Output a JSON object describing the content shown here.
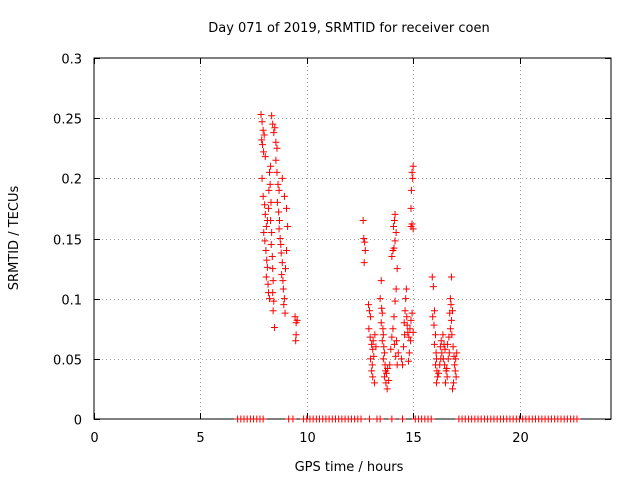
{
  "chart_data": {
    "type": "scatter",
    "title": "Day 071 of 2019, SRMTID for receiver coen",
    "xlabel": "GPS time / hours",
    "ylabel": "SRMTID / TECUs",
    "xlim": [
      0,
      24.3
    ],
    "ylim": [
      0,
      0.3
    ],
    "xticks": [
      0,
      5,
      10,
      15,
      20
    ],
    "xtick_labels": [
      "0",
      "5",
      "10",
      "15",
      "20"
    ],
    "yticks": [
      0,
      0.05,
      0.1,
      0.15,
      0.2,
      0.25,
      0.3
    ],
    "ytick_labels": [
      "0",
      "0.05",
      "0.1",
      "0.15",
      "0.2",
      "0.25",
      "0.3"
    ],
    "grid": true,
    "marker": "plus",
    "color": "#ff0000",
    "series": [
      {
        "name": "SRMTID",
        "points": [
          [
            7.85,
            0.253
          ],
          [
            7.9,
            0.247
          ],
          [
            7.95,
            0.24
          ],
          [
            7.88,
            0.232
          ],
          [
            7.92,
            0.228
          ],
          [
            8.0,
            0.236
          ],
          [
            7.97,
            0.222
          ],
          [
            8.05,
            0.218
          ],
          [
            7.9,
            0.2
          ],
          [
            7.95,
            0.185
          ],
          [
            8.02,
            0.178
          ],
          [
            8.05,
            0.17
          ],
          [
            8.1,
            0.16
          ],
          [
            7.98,
            0.155
          ],
          [
            8.03,
            0.148
          ],
          [
            8.08,
            0.14
          ],
          [
            8.12,
            0.132
          ],
          [
            8.15,
            0.126
          ],
          [
            8.1,
            0.118
          ],
          [
            8.18,
            0.112
          ],
          [
            8.2,
            0.105
          ],
          [
            8.25,
            0.1
          ],
          [
            8.15,
            0.165
          ],
          [
            8.2,
            0.175
          ],
          [
            8.22,
            0.19
          ],
          [
            8.25,
            0.205
          ],
          [
            8.3,
            0.21
          ],
          [
            8.28,
            0.195
          ],
          [
            8.32,
            0.18
          ],
          [
            8.3,
            0.165
          ],
          [
            8.35,
            0.155
          ],
          [
            8.33,
            0.145
          ],
          [
            8.38,
            0.135
          ],
          [
            8.4,
            0.125
          ],
          [
            8.42,
            0.115
          ],
          [
            8.4,
            0.105
          ],
          [
            8.45,
            0.098
          ],
          [
            8.42,
            0.09
          ],
          [
            8.48,
            0.076
          ],
          [
            8.35,
            0.252
          ],
          [
            8.4,
            0.245
          ],
          [
            8.45,
            0.238
          ],
          [
            8.5,
            0.242
          ],
          [
            8.55,
            0.23
          ],
          [
            8.6,
            0.225
          ],
          [
            8.55,
            0.215
          ],
          [
            8.6,
            0.205
          ],
          [
            8.65,
            0.195
          ],
          [
            8.7,
            0.19
          ],
          [
            8.62,
            0.18
          ],
          [
            8.68,
            0.172
          ],
          [
            8.72,
            0.165
          ],
          [
            8.7,
            0.158
          ],
          [
            8.75,
            0.15
          ],
          [
            8.78,
            0.145
          ],
          [
            8.8,
            0.138
          ],
          [
            8.85,
            0.13
          ],
          [
            8.82,
            0.12
          ],
          [
            8.88,
            0.115
          ],
          [
            8.9,
            0.108
          ],
          [
            8.95,
            0.1
          ],
          [
            8.92,
            0.095
          ],
          [
            8.98,
            0.088
          ],
          [
            9.0,
            0.125
          ],
          [
            9.05,
            0.14
          ],
          [
            9.1,
            0.16
          ],
          [
            9.05,
            0.175
          ],
          [
            8.95,
            0.185
          ],
          [
            8.85,
            0.2
          ],
          [
            9.45,
            0.085
          ],
          [
            9.5,
            0.08
          ],
          [
            9.55,
            0.082
          ],
          [
            9.5,
            0.07
          ],
          [
            9.48,
            0.065
          ],
          [
            12.65,
            0.165
          ],
          [
            12.68,
            0.15
          ],
          [
            12.72,
            0.147
          ],
          [
            12.75,
            0.14
          ],
          [
            12.7,
            0.13
          ],
          [
            12.9,
            0.095
          ],
          [
            12.95,
            0.09
          ],
          [
            13.0,
            0.085
          ],
          [
            12.92,
            0.075
          ],
          [
            12.98,
            0.068
          ],
          [
            13.05,
            0.062
          ],
          [
            13.1,
            0.058
          ],
          [
            13.0,
            0.05
          ],
          [
            13.08,
            0.045
          ],
          [
            13.15,
            0.052
          ],
          [
            13.12,
            0.065
          ],
          [
            13.2,
            0.07
          ],
          [
            13.25,
            0.06
          ],
          [
            13.05,
            0.04
          ],
          [
            13.1,
            0.035
          ],
          [
            13.18,
            0.03
          ],
          [
            13.5,
            0.115
          ],
          [
            13.45,
            0.1
          ],
          [
            13.52,
            0.092
          ],
          [
            13.55,
            0.088
          ],
          [
            13.5,
            0.08
          ],
          [
            13.58,
            0.075
          ],
          [
            13.6,
            0.07
          ],
          [
            13.55,
            0.065
          ],
          [
            13.62,
            0.06
          ],
          [
            13.65,
            0.055
          ],
          [
            13.6,
            0.05
          ],
          [
            13.68,
            0.045
          ],
          [
            13.7,
            0.04
          ],
          [
            13.65,
            0.035
          ],
          [
            13.72,
            0.03
          ],
          [
            13.75,
            0.038
          ],
          [
            13.8,
            0.042
          ],
          [
            13.78,
            0.025
          ],
          [
            13.85,
            0.032
          ],
          [
            13.9,
            0.045
          ],
          [
            13.95,
            0.058
          ],
          [
            14.0,
            0.068
          ],
          [
            14.05,
            0.075
          ],
          [
            14.1,
            0.085
          ],
          [
            14.15,
            0.098
          ],
          [
            14.2,
            0.108
          ],
          [
            14.12,
            0.062
          ],
          [
            14.18,
            0.052
          ],
          [
            14.25,
            0.045
          ],
          [
            14.3,
            0.055
          ],
          [
            14.22,
            0.065
          ],
          [
            14.0,
            0.135
          ],
          [
            14.05,
            0.14
          ],
          [
            14.1,
            0.142
          ],
          [
            14.15,
            0.148
          ],
          [
            14.08,
            0.16
          ],
          [
            14.12,
            0.165
          ],
          [
            14.15,
            0.17
          ],
          [
            14.2,
            0.155
          ],
          [
            14.25,
            0.125
          ],
          [
            14.45,
            0.05
          ],
          [
            14.5,
            0.045
          ],
          [
            14.55,
            0.06
          ],
          [
            14.6,
            0.07
          ],
          [
            14.58,
            0.08
          ],
          [
            14.62,
            0.09
          ],
          [
            14.65,
            0.1
          ],
          [
            14.68,
            0.108
          ],
          [
            14.7,
            0.085
          ],
          [
            14.72,
            0.078
          ],
          [
            14.75,
            0.072
          ],
          [
            14.8,
            0.068
          ],
          [
            14.85,
            0.075
          ],
          [
            14.9,
            0.082
          ],
          [
            14.95,
            0.088
          ],
          [
            15.0,
            0.072
          ],
          [
            14.88,
            0.065
          ],
          [
            14.82,
            0.055
          ],
          [
            14.78,
            0.048
          ],
          [
            14.9,
            0.16
          ],
          [
            14.95,
            0.162
          ],
          [
            15.0,
            0.158
          ],
          [
            14.92,
            0.19
          ],
          [
            14.98,
            0.2
          ],
          [
            15.0,
            0.21
          ],
          [
            14.95,
            0.205
          ],
          [
            14.9,
            0.175
          ],
          [
            15.9,
            0.118
          ],
          [
            15.95,
            0.11
          ],
          [
            16.0,
            0.09
          ],
          [
            15.92,
            0.085
          ],
          [
            15.98,
            0.078
          ],
          [
            16.05,
            0.07
          ],
          [
            16.0,
            0.062
          ],
          [
            16.08,
            0.055
          ],
          [
            16.1,
            0.05
          ],
          [
            16.05,
            0.045
          ],
          [
            16.12,
            0.04
          ],
          [
            16.15,
            0.035
          ],
          [
            16.1,
            0.03
          ],
          [
            16.2,
            0.038
          ],
          [
            16.25,
            0.045
          ],
          [
            16.3,
            0.05
          ],
          [
            16.35,
            0.055
          ],
          [
            16.28,
            0.06
          ],
          [
            16.32,
            0.065
          ],
          [
            16.4,
            0.07
          ],
          [
            16.45,
            0.062
          ],
          [
            16.5,
            0.058
          ],
          [
            16.42,
            0.05
          ],
          [
            16.48,
            0.045
          ],
          [
            16.55,
            0.04
          ],
          [
            16.6,
            0.035
          ],
          [
            16.52,
            0.03
          ],
          [
            16.58,
            0.042
          ],
          [
            16.65,
            0.05
          ],
          [
            16.7,
            0.055
          ],
          [
            16.62,
            0.062
          ],
          [
            16.68,
            0.068
          ],
          [
            16.75,
            0.075
          ],
          [
            16.8,
            0.082
          ],
          [
            16.72,
            0.088
          ],
          [
            16.78,
            0.095
          ],
          [
            16.85,
            0.09
          ],
          [
            16.82,
            0.07
          ],
          [
            16.88,
            0.06
          ],
          [
            16.92,
            0.052
          ],
          [
            16.95,
            0.045
          ],
          [
            17.0,
            0.05
          ],
          [
            17.05,
            0.055
          ],
          [
            16.98,
            0.04
          ],
          [
            17.02,
            0.035
          ],
          [
            16.9,
            0.03
          ],
          [
            16.85,
            0.025
          ],
          [
            16.8,
            0.118
          ],
          [
            16.75,
            0.1
          ]
        ]
      },
      {
        "name": "zero-level",
        "points": [
          [
            6.75,
            0
          ],
          [
            6.9,
            0
          ],
          [
            7.05,
            0
          ],
          [
            7.2,
            0
          ],
          [
            7.35,
            0
          ],
          [
            7.5,
            0
          ],
          [
            7.65,
            0
          ],
          [
            7.8,
            0
          ],
          [
            7.95,
            0
          ],
          [
            9.15,
            0
          ],
          [
            9.35,
            0
          ],
          [
            9.85,
            0
          ],
          [
            10.0,
            0
          ],
          [
            10.15,
            0
          ],
          [
            10.3,
            0
          ],
          [
            10.45,
            0
          ],
          [
            10.6,
            0
          ],
          [
            10.75,
            0
          ],
          [
            10.9,
            0
          ],
          [
            11.05,
            0
          ],
          [
            11.2,
            0
          ],
          [
            11.35,
            0
          ],
          [
            11.5,
            0
          ],
          [
            11.65,
            0
          ],
          [
            11.8,
            0
          ],
          [
            11.95,
            0
          ],
          [
            12.1,
            0
          ],
          [
            12.25,
            0
          ],
          [
            12.4,
            0
          ],
          [
            12.55,
            0
          ],
          [
            12.95,
            0
          ],
          [
            13.3,
            0
          ],
          [
            13.45,
            0
          ],
          [
            14.0,
            0
          ],
          [
            14.5,
            0
          ],
          [
            15.1,
            0
          ],
          [
            15.25,
            0
          ],
          [
            15.4,
            0
          ],
          [
            15.55,
            0
          ],
          [
            15.7,
            0
          ],
          [
            15.85,
            0
          ],
          [
            17.15,
            0
          ],
          [
            17.3,
            0
          ],
          [
            17.45,
            0
          ],
          [
            17.6,
            0
          ],
          [
            17.75,
            0
          ],
          [
            17.9,
            0
          ],
          [
            18.05,
            0
          ],
          [
            18.2,
            0
          ],
          [
            18.35,
            0
          ],
          [
            18.5,
            0
          ],
          [
            18.65,
            0
          ],
          [
            18.8,
            0
          ],
          [
            18.95,
            0
          ],
          [
            19.1,
            0
          ],
          [
            19.25,
            0
          ],
          [
            19.4,
            0
          ],
          [
            19.55,
            0
          ],
          [
            19.7,
            0
          ],
          [
            19.85,
            0
          ],
          [
            20.0,
            0
          ],
          [
            20.15,
            0
          ],
          [
            20.3,
            0
          ],
          [
            20.45,
            0
          ],
          [
            20.6,
            0
          ],
          [
            20.75,
            0
          ],
          [
            20.9,
            0
          ],
          [
            21.05,
            0
          ],
          [
            21.2,
            0
          ],
          [
            21.35,
            0
          ],
          [
            21.5,
            0
          ],
          [
            21.65,
            0
          ],
          [
            21.8,
            0
          ],
          [
            21.95,
            0
          ],
          [
            22.1,
            0
          ],
          [
            22.25,
            0
          ],
          [
            22.4,
            0
          ],
          [
            22.55,
            0
          ],
          [
            22.7,
            0
          ]
        ]
      }
    ]
  }
}
